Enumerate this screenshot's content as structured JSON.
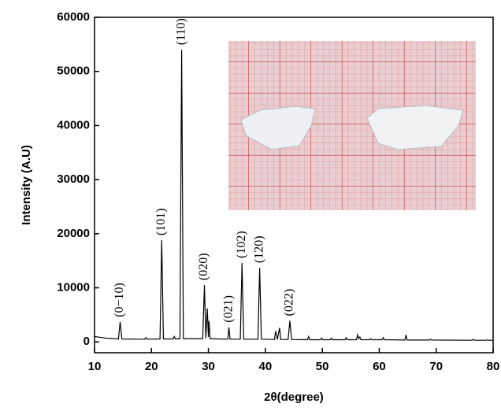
{
  "chart_data": {
    "type": "line",
    "xlabel": "2θ(degree)",
    "ylabel": "Intensity (A.U)",
    "xlim": [
      10,
      80
    ],
    "xticks": [
      10,
      20,
      30,
      40,
      50,
      60,
      70,
      80
    ],
    "ylim": [
      -2000,
      60000
    ],
    "yticks": [
      0,
      10000,
      20000,
      30000,
      40000,
      50000,
      60000
    ],
    "series": [
      {
        "color": "#000000",
        "x": [
          10,
          11,
          12,
          14.2,
          14.5,
          14.8,
          18.8,
          19,
          19.2,
          21.5,
          21.8,
          22.1,
          23.8,
          24,
          24.2,
          25,
          25.3,
          25.6,
          29,
          29.3,
          29.55,
          29.8,
          30.0,
          30.1,
          30.3,
          33.4,
          33.6,
          33.8,
          35.6,
          35.9,
          36.2,
          38.7,
          39,
          39.3,
          41.6,
          41.8,
          42.1,
          42.5,
          42.7,
          44.0,
          44.3,
          44.6,
          47.4,
          47.6,
          47.8,
          49.7,
          49.9,
          50.1,
          51.4,
          51.6,
          51.8,
          54,
          54.2,
          54.4,
          56,
          56.2,
          56.4,
          56.6,
          56.8,
          58.3,
          58.5,
          58.7,
          60.5,
          60.7,
          60.9,
          64.5,
          64.7,
          64.9,
          68.8,
          69,
          69.2,
          76.3,
          76.5,
          76.7,
          78.8,
          79,
          79.2,
          80
        ],
        "values": [
          1000,
          850,
          700,
          550,
          3700,
          550,
          500,
          800,
          500,
          550,
          18800,
          550,
          550,
          1000,
          550,
          600,
          54000,
          600,
          600,
          10500,
          700,
          6200,
          900,
          3900,
          600,
          500,
          2700,
          500,
          500,
          14600,
          500,
          500,
          13700,
          500,
          450,
          2000,
          450,
          2600,
          450,
          450,
          3900,
          450,
          400,
          1000,
          400,
          400,
          700,
          400,
          400,
          700,
          400,
          400,
          800,
          400,
          400,
          1300,
          600,
          900,
          400,
          400,
          600,
          400,
          400,
          800,
          400,
          350,
          1300,
          350,
          350,
          500,
          350,
          300,
          500,
          300,
          300,
          400,
          300,
          300
        ]
      }
    ],
    "annotations": [
      {
        "text": "(0−10)",
        "x": 14.5
      },
      {
        "text": "(101)",
        "x": 21.8
      },
      {
        "text": "(110)",
        "x": 25.3
      },
      {
        "text": "(020)",
        "x": 29.3
      },
      {
        "text": "(021)",
        "x": 33.6
      },
      {
        "text": "(102)",
        "x": 35.9
      },
      {
        "text": "(120)",
        "x": 39
      },
      {
        "text": "(022)",
        "x": 44.3
      }
    ]
  }
}
